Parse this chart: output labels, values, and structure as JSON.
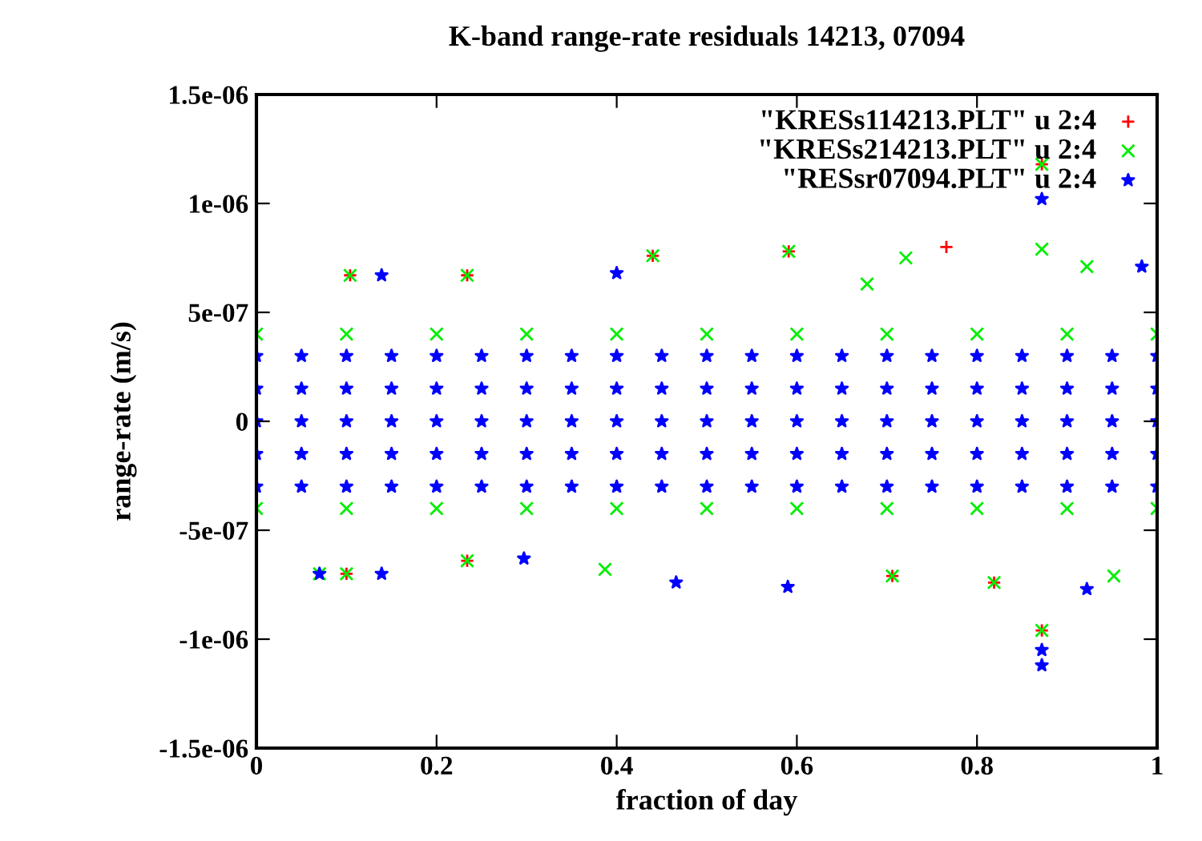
{
  "chart_data": {
    "type": "scatter",
    "title": "K-band range-rate residuals 14213, 07094",
    "xlabel": "fraction of day",
    "ylabel": "range-rate (m/s)",
    "xlim": [
      0,
      1
    ],
    "ylim": [
      -1.5e-06,
      1.5e-06
    ],
    "xticks": [
      0,
      0.2,
      0.4,
      0.6,
      0.8,
      1
    ],
    "yticks": [
      {
        "value": -1.5e-06,
        "label": "-1.5e-06"
      },
      {
        "value": -1e-06,
        "label": "-1e-06"
      },
      {
        "value": -5e-07,
        "label": "-5e-07"
      },
      {
        "value": 0,
        "label": "0"
      },
      {
        "value": 5e-07,
        "label": "5e-07"
      },
      {
        "value": 1e-06,
        "label": "1e-06"
      },
      {
        "value": 1.5e-06,
        "label": "1.5e-06"
      }
    ],
    "grid": false,
    "legend": "top right",
    "series": [
      {
        "name": "\"KRESs114213.PLT\" u 2:4",
        "color": "#ff0000",
        "marker": "plus",
        "x": [
          0.104,
          0.234,
          0.44,
          0.591,
          0.766,
          0.872,
          0.1,
          0.234,
          0.872,
          0.819,
          0.706
        ],
        "values": [
          6.7e-07,
          6.7e-07,
          7.6e-07,
          7.8e-07,
          8e-07,
          1.18e-06,
          -7e-07,
          -6.4e-07,
          -9.6e-07,
          -7.4e-07,
          -7.1e-07
        ]
      },
      {
        "name": "\"KRESs214213.PLT\" u 2:4",
        "color": "#00ee00",
        "marker": "cross",
        "x": [
          0.104,
          0.234,
          0.44,
          0.591,
          0.721,
          0.872,
          0.872,
          0.922,
          0.678,
          0.07,
          0.1,
          0.234,
          0.387,
          0.872,
          0.819,
          0.952,
          0.706,
          0,
          0.1,
          0.2,
          0.3,
          0.4,
          0.5,
          0.6,
          0.7,
          0.8,
          0.9,
          1,
          0,
          0.1,
          0.2,
          0.3,
          0.4,
          0.5,
          0.6,
          0.7,
          0.8,
          0.9,
          1
        ],
        "values": [
          6.7e-07,
          6.7e-07,
          7.6e-07,
          7.8e-07,
          7.5e-07,
          1.18e-06,
          7.9e-07,
          7.1e-07,
          6.3e-07,
          -7e-07,
          -7e-07,
          -6.4e-07,
          -6.8e-07,
          -9.6e-07,
          -7.4e-07,
          -7.1e-07,
          -7.1e-07,
          4e-07,
          4e-07,
          4e-07,
          4e-07,
          4e-07,
          4e-07,
          4e-07,
          4e-07,
          4e-07,
          4e-07,
          4e-07,
          -4e-07,
          -4e-07,
          -4e-07,
          -4e-07,
          -4e-07,
          -4e-07,
          -4e-07,
          -4e-07,
          -4e-07,
          -4e-07,
          -4e-07
        ]
      },
      {
        "name": "\"RESsr07094.PLT\" u 2:4",
        "color": "#0000ff",
        "marker": "star",
        "x": [
          0.139,
          0.4,
          0.872,
          0.983,
          0.07,
          0.139,
          0.297,
          0.466,
          0.872,
          0.872,
          0.922,
          0.59,
          0,
          0,
          0,
          0,
          0,
          0.05,
          0.05,
          0.05,
          0.05,
          0.05,
          0.1,
          0.1,
          0.1,
          0.1,
          0.1,
          0.15,
          0.15,
          0.15,
          0.15,
          0.15,
          0.2,
          0.2,
          0.2,
          0.2,
          0.2,
          0.25,
          0.25,
          0.25,
          0.25,
          0.25,
          0.3,
          0.3,
          0.3,
          0.3,
          0.3,
          0.35,
          0.35,
          0.35,
          0.35,
          0.35,
          0.4,
          0.4,
          0.4,
          0.4,
          0.4,
          0.45,
          0.45,
          0.45,
          0.45,
          0.45,
          0.5,
          0.5,
          0.5,
          0.5,
          0.5,
          0.55,
          0.55,
          0.55,
          0.55,
          0.55,
          0.6,
          0.6,
          0.6,
          0.6,
          0.6,
          0.65,
          0.65,
          0.65,
          0.65,
          0.65,
          0.7,
          0.7,
          0.7,
          0.7,
          0.7,
          0.75,
          0.75,
          0.75,
          0.75,
          0.75,
          0.8,
          0.8,
          0.8,
          0.8,
          0.8,
          0.85,
          0.85,
          0.85,
          0.85,
          0.85,
          0.9,
          0.9,
          0.9,
          0.9,
          0.9,
          0.95,
          0.95,
          0.95,
          0.95,
          0.95,
          1,
          1,
          1,
          1,
          1
        ],
        "values": [
          6.7e-07,
          6.8e-07,
          1.02e-06,
          7.1e-07,
          -7e-07,
          -7e-07,
          -6.3e-07,
          -7.4e-07,
          -1.05e-06,
          -1.12e-06,
          -7.7e-07,
          -7.6e-07,
          -3e-07,
          -1.5e-07,
          0,
          1.5e-07,
          3e-07,
          -3e-07,
          -1.5e-07,
          0,
          1.5e-07,
          3e-07,
          -3e-07,
          -1.5e-07,
          0,
          1.5e-07,
          3e-07,
          -3e-07,
          -1.5e-07,
          0,
          1.5e-07,
          3e-07,
          -3e-07,
          -1.5e-07,
          0,
          1.5e-07,
          3e-07,
          -3e-07,
          -1.5e-07,
          0,
          1.5e-07,
          3e-07,
          -3e-07,
          -1.5e-07,
          0,
          1.5e-07,
          3e-07,
          -3e-07,
          -1.5e-07,
          0,
          1.5e-07,
          3e-07,
          -3e-07,
          -1.5e-07,
          0,
          1.5e-07,
          3e-07,
          -3e-07,
          -1.5e-07,
          0,
          1.5e-07,
          3e-07,
          -3e-07,
          -1.5e-07,
          0,
          1.5e-07,
          3e-07,
          -3e-07,
          -1.5e-07,
          0,
          1.5e-07,
          3e-07,
          -3e-07,
          -1.5e-07,
          0,
          1.5e-07,
          3e-07,
          -3e-07,
          -1.5e-07,
          0,
          1.5e-07,
          3e-07,
          -3e-07,
          -1.5e-07,
          0,
          1.5e-07,
          3e-07,
          -3e-07,
          -1.5e-07,
          0,
          1.5e-07,
          3e-07,
          -3e-07,
          -1.5e-07,
          0,
          1.5e-07,
          3e-07,
          -3e-07,
          -1.5e-07,
          0,
          1.5e-07,
          3e-07,
          -3e-07,
          -1.5e-07,
          0,
          1.5e-07,
          3e-07,
          -3e-07,
          -1.5e-07,
          0,
          1.5e-07,
          3e-07,
          -3e-07,
          -1.5e-07,
          0,
          1.5e-07,
          3e-07
        ]
      }
    ]
  }
}
